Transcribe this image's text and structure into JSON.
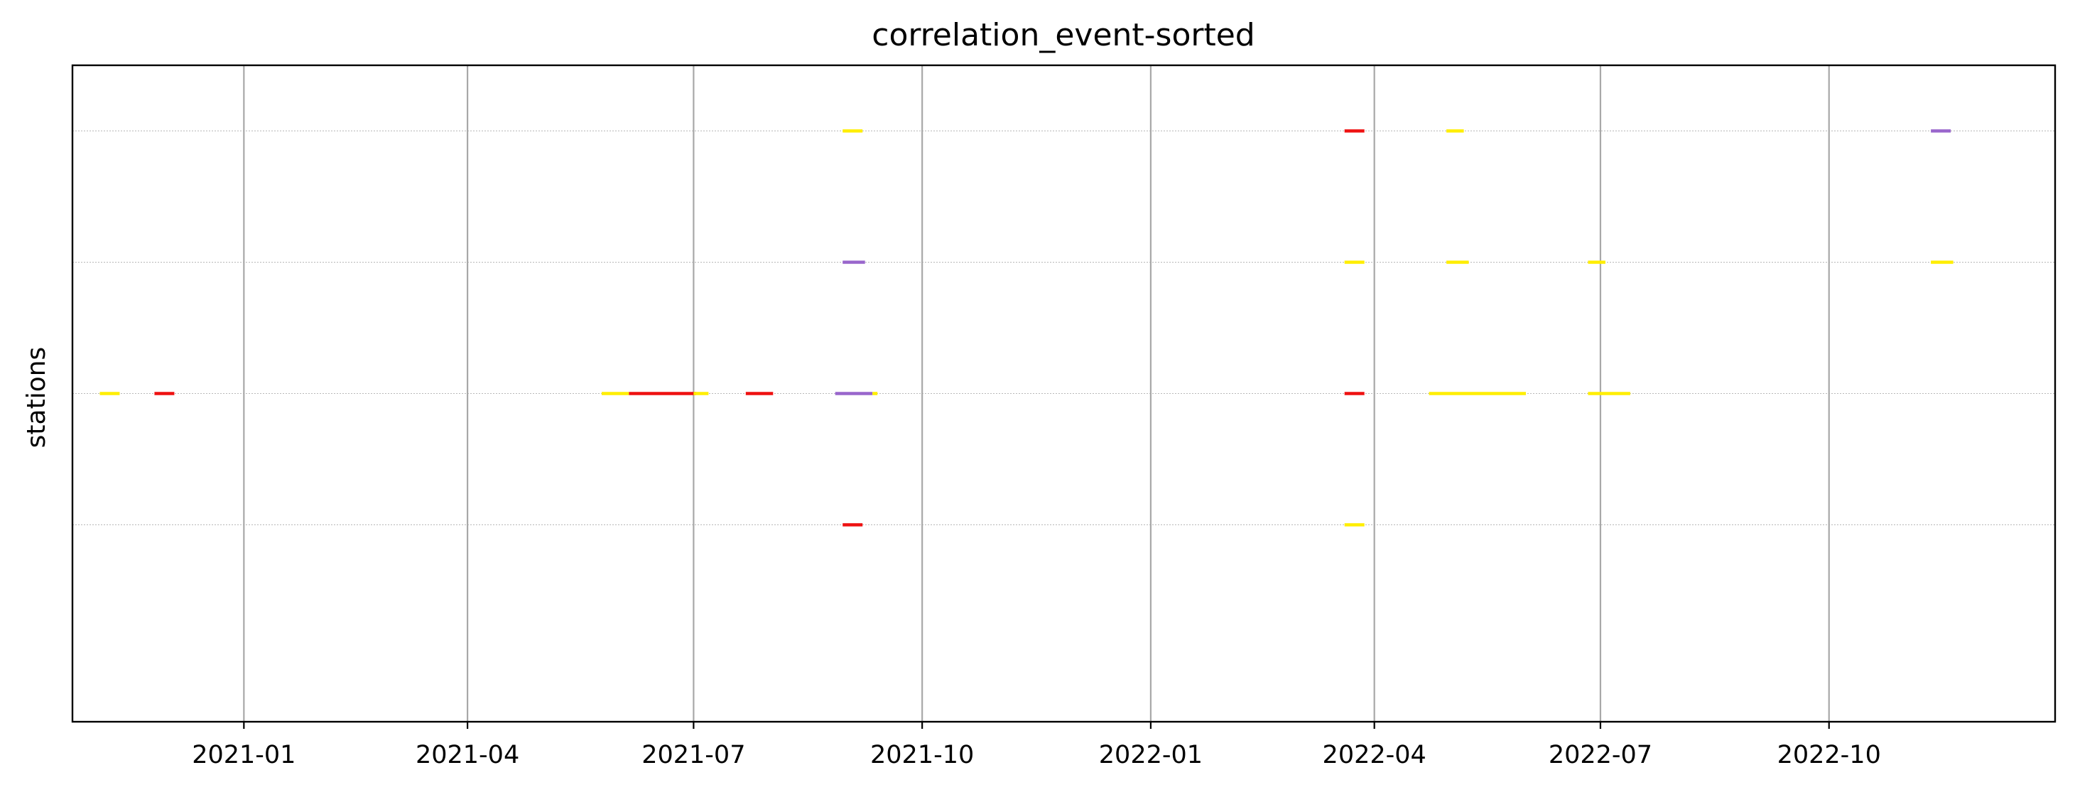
{
  "chart_data": {
    "type": "timeline",
    "title": "correlation_event-sorted",
    "xlabel": "",
    "ylabel": "stations",
    "x_axis": "date",
    "xlim": [
      "2020-10-24",
      "2022-12-31"
    ],
    "ylim": [
      -0.5,
      4.5
    ],
    "x_ticks": [
      "2021-01",
      "2021-04",
      "2021-07",
      "2021-10",
      "2022-01",
      "2022-04",
      "2022-07",
      "2022-10"
    ],
    "y_rows": [
      1,
      2,
      3,
      4
    ],
    "grid": {
      "x": true,
      "y": "dotted"
    },
    "legend": "none",
    "colors": {
      "yellow": "#ffee00",
      "red": "#ee1111",
      "purple": "#9966cc"
    },
    "segments": [
      {
        "row": 2,
        "start": "2020-11-04",
        "end": "2020-11-12",
        "color": "yellow"
      },
      {
        "row": 2,
        "start": "2020-11-26",
        "end": "2020-12-04",
        "color": "red"
      },
      {
        "row": 2,
        "start": "2021-05-25",
        "end": "2021-06-05",
        "color": "yellow"
      },
      {
        "row": 2,
        "start": "2021-06-05",
        "end": "2021-07-02",
        "color": "red"
      },
      {
        "row": 2,
        "start": "2021-07-01",
        "end": "2021-07-07",
        "color": "yellow"
      },
      {
        "row": 2,
        "start": "2021-07-22",
        "end": "2021-08-02",
        "color": "red"
      },
      {
        "row": 2,
        "start": "2021-08-27",
        "end": "2021-09-11",
        "color": "purple"
      },
      {
        "row": 2,
        "start": "2021-09-11",
        "end": "2021-09-13",
        "color": "yellow"
      },
      {
        "row": 1,
        "start": "2021-08-30",
        "end": "2021-09-07",
        "color": "red"
      },
      {
        "row": 3,
        "start": "2021-08-30",
        "end": "2021-09-08",
        "color": "purple"
      },
      {
        "row": 4,
        "start": "2021-08-30",
        "end": "2021-09-07",
        "color": "yellow"
      },
      {
        "row": 1,
        "start": "2022-03-20",
        "end": "2022-03-28",
        "color": "yellow"
      },
      {
        "row": 2,
        "start": "2022-03-20",
        "end": "2022-03-28",
        "color": "red"
      },
      {
        "row": 3,
        "start": "2022-03-20",
        "end": "2022-03-28",
        "color": "yellow"
      },
      {
        "row": 4,
        "start": "2022-03-20",
        "end": "2022-03-28",
        "color": "red"
      },
      {
        "row": 2,
        "start": "2022-04-23",
        "end": "2022-06-01",
        "color": "yellow"
      },
      {
        "row": 3,
        "start": "2022-04-30",
        "end": "2022-05-09",
        "color": "yellow"
      },
      {
        "row": 4,
        "start": "2022-04-30",
        "end": "2022-05-07",
        "color": "yellow"
      },
      {
        "row": 2,
        "start": "2022-06-26",
        "end": "2022-07-13",
        "color": "yellow"
      },
      {
        "row": 3,
        "start": "2022-06-26",
        "end": "2022-07-03",
        "color": "yellow"
      },
      {
        "row": 3,
        "start": "2022-11-11",
        "end": "2022-11-20",
        "color": "yellow"
      },
      {
        "row": 4,
        "start": "2022-11-11",
        "end": "2022-11-19",
        "color": "purple"
      }
    ]
  }
}
